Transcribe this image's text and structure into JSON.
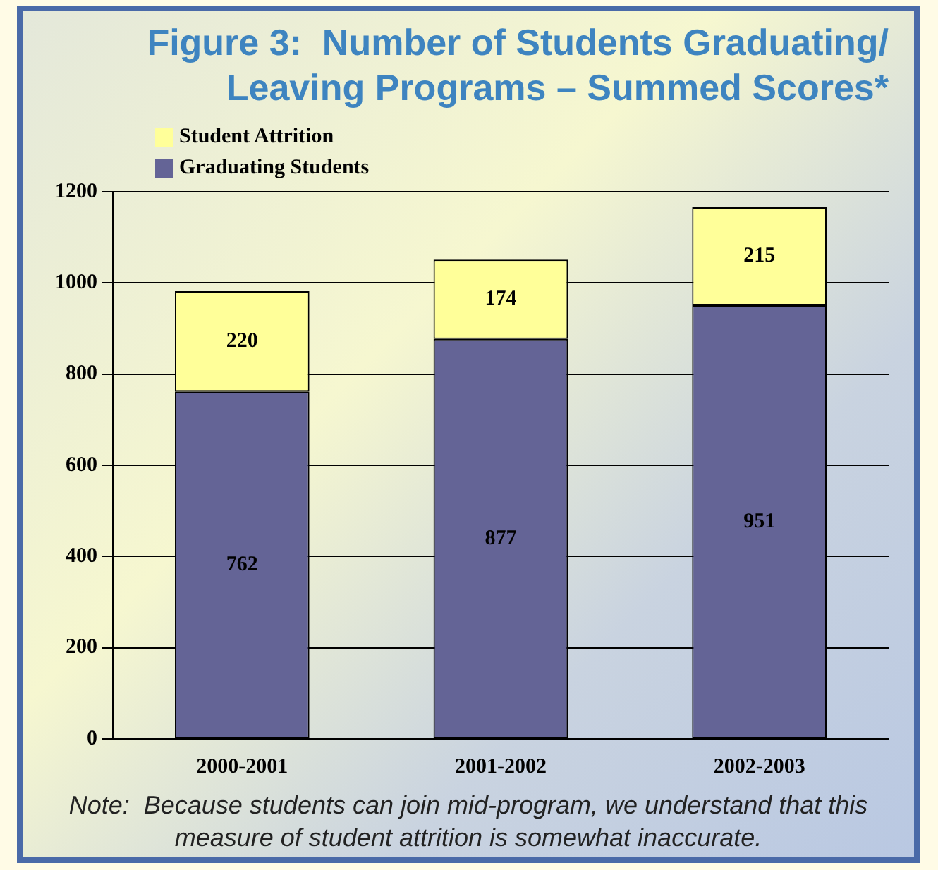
{
  "chart_data": {
    "type": "bar",
    "title": "Figure 3:  Number of Students Graduating/ Leaving Programs – Summed Scores*",
    "categories": [
      "2000-2001",
      "2001-2002",
      "2002-2003"
    ],
    "series": [
      {
        "name": "Graduating Students",
        "color": "#646496",
        "values": [
          762,
          877,
          951
        ]
      },
      {
        "name": "Student Attrition",
        "color": "#ffff99",
        "values": [
          220,
          174,
          215
        ]
      }
    ],
    "stacked": true,
    "ylim": [
      0,
      1200
    ],
    "yticks": [
      0,
      200,
      400,
      600,
      800,
      1000,
      1200
    ],
    "grid": "y",
    "legend": "top left",
    "data_labels": true,
    "annotations": [
      "Note:  Because students can join mid-program, we understand that this measure of student attrition is somewhat inaccurate."
    ]
  }
}
